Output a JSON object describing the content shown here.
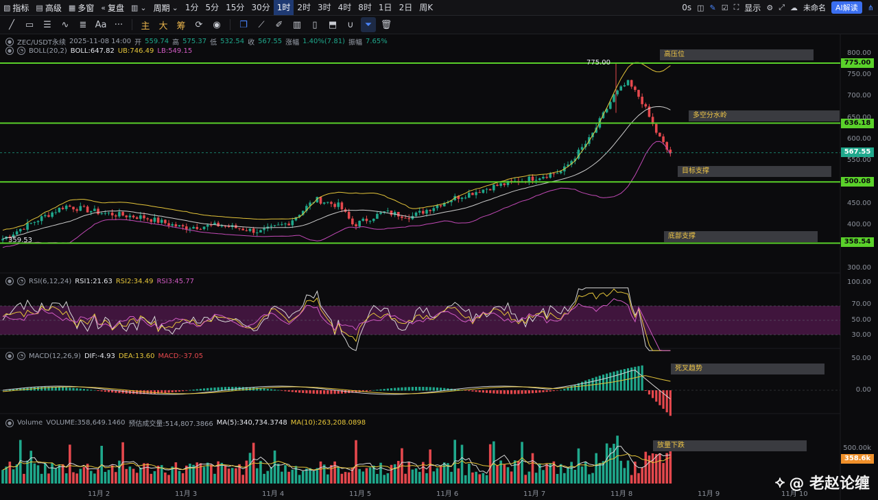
{
  "toolbar": {
    "indicators": "指标",
    "advanced": "高级",
    "multi_window": "多窗",
    "replay": "复盘",
    "period": "周期",
    "timeframes": [
      "1分",
      "5分",
      "15分",
      "30分",
      "1时",
      "2时",
      "3时",
      "4时",
      "8时",
      "1日",
      "2日",
      "周K"
    ],
    "active_tf": "1时",
    "latency": "0s",
    "display": "显示",
    "layout_name": "未命名",
    "ai_label": "AI解读"
  },
  "drawing_tools": {
    "main": "主",
    "large": "大",
    "chips": "筹",
    "text_tool": "Aa",
    "more": "···"
  },
  "legend": {
    "symbol": "ZEC/USDT永续",
    "time": "2025-11-08 14:00",
    "open_label": "开",
    "open": "559.74",
    "high_label": "高",
    "high": "575.37",
    "low_label": "低",
    "low": "532.54",
    "close_label": "收",
    "close": "567.55",
    "change_label": "涨幅",
    "change": "1.40%(7.81)",
    "amp_label": "振幅",
    "amp": "7.65%",
    "boll_name": "BOLL(20,2)",
    "boll": "BOLL:647.82",
    "ub": "UB:746.49",
    "lb": "LB:549.15",
    "rsi_name": "RSI(6,12,24)",
    "rsi1": "RSI1:21.63",
    "rsi2": "RSI2:34.49",
    "rsi3": "RSI3:45.77",
    "macd_name": "MACD(12,26,9)",
    "dif": "DIF:-4.93",
    "dea": "DEA:13.60",
    "macd": "MACD:-37.05",
    "vol_name": "Volume",
    "vol": "VOLUME:358,649.1460",
    "est": "预估成交量:514,807.3866",
    "ma5": "MA(5):340,734.3748",
    "ma10": "MA(10):263,208.0898"
  },
  "annotations": {
    "high_resist": "高压位",
    "watershed": "多空分水岭",
    "target_support": "目标支撑",
    "bottom_support": "底部支撑",
    "death_cross": "死叉趋势",
    "volume_drop": "放量下跌"
  },
  "price_tags": {
    "r775": "775.00",
    "r636": "636.18",
    "cur": "567.55",
    "s500": "500.08",
    "s358": "358.54",
    "vol_cur": "358.6k"
  },
  "marks": {
    "high_mark": "775.00",
    "low_mark": "359.53"
  },
  "axis": {
    "price_ticks": [
      "800.00",
      "750.00",
      "700.00",
      "650.00",
      "600.00",
      "550.00",
      "450.00",
      "400.00",
      "300.00"
    ],
    "rsi_ticks": [
      "100.00",
      "70.00",
      "50.00",
      "30.00"
    ],
    "macd_ticks": [
      "50.00",
      "0.00"
    ],
    "vol_ticks": [
      "500.00k"
    ],
    "dates": [
      "11月 2",
      "11月 3",
      "11月 4",
      "11月 5",
      "11月 6",
      "11月 7",
      "11月 8",
      "11月 9",
      "11月 10"
    ]
  },
  "colors": {
    "up": "#1fa88c",
    "down": "#e5484d",
    "level": "#5ad12a",
    "boll_mid": "#cfcfcf",
    "boll_up": "#e6c63a",
    "boll_low": "#c44ab8"
  },
  "watermark": "@ 老赵论缠",
  "chart_data": {
    "type": "line",
    "series": [
      {
        "name": "close",
        "x": [
          "11月 2",
          "11月 3",
          "11月 4",
          "11月 5",
          "11月 6",
          "11月 7",
          "11月 8",
          "11月 8 14:00"
        ],
        "values": [
          415,
          385,
          420,
          430,
          455,
          520,
          700,
          567.55
        ]
      }
    ],
    "levels": [
      775.0,
      636.18,
      500.08,
      358.54
    ],
    "ylim": [
      280,
      820
    ]
  }
}
